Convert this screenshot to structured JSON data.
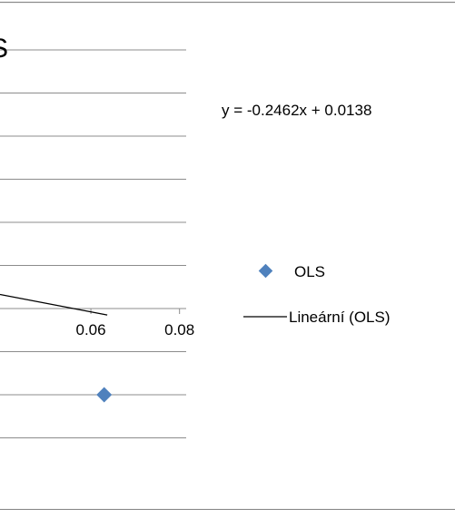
{
  "chart_data": {
    "type": "scatter",
    "title_fragment": "S",
    "x_tick_labels": [
      "0.06",
      "0.08"
    ],
    "x_ticks": [
      0.06,
      0.08
    ],
    "xlim": [
      0.0395,
      0.0815
    ],
    "ylim": [
      -0.05,
      0.075
    ],
    "x_axis_y": 0.0,
    "gridlines_y": [
      -0.025,
      0.0,
      0.025,
      0.05,
      0.075
    ],
    "grid": true,
    "series": [
      {
        "name": "OLS",
        "kind": "points",
        "color": "#4f81bd",
        "marker": "diamond",
        "points": [
          {
            "x": 0.063,
            "y": -0.025
          }
        ]
      },
      {
        "name": "Lineární (OLS)",
        "kind": "trendline",
        "color": "#000000",
        "slope": -0.2462,
        "intercept": 0.0138,
        "x_range": [
          0.0395,
          0.0637
        ]
      }
    ],
    "trendline_equation": "y = -0.2462x + 0.0138",
    "legend_position": "right"
  }
}
